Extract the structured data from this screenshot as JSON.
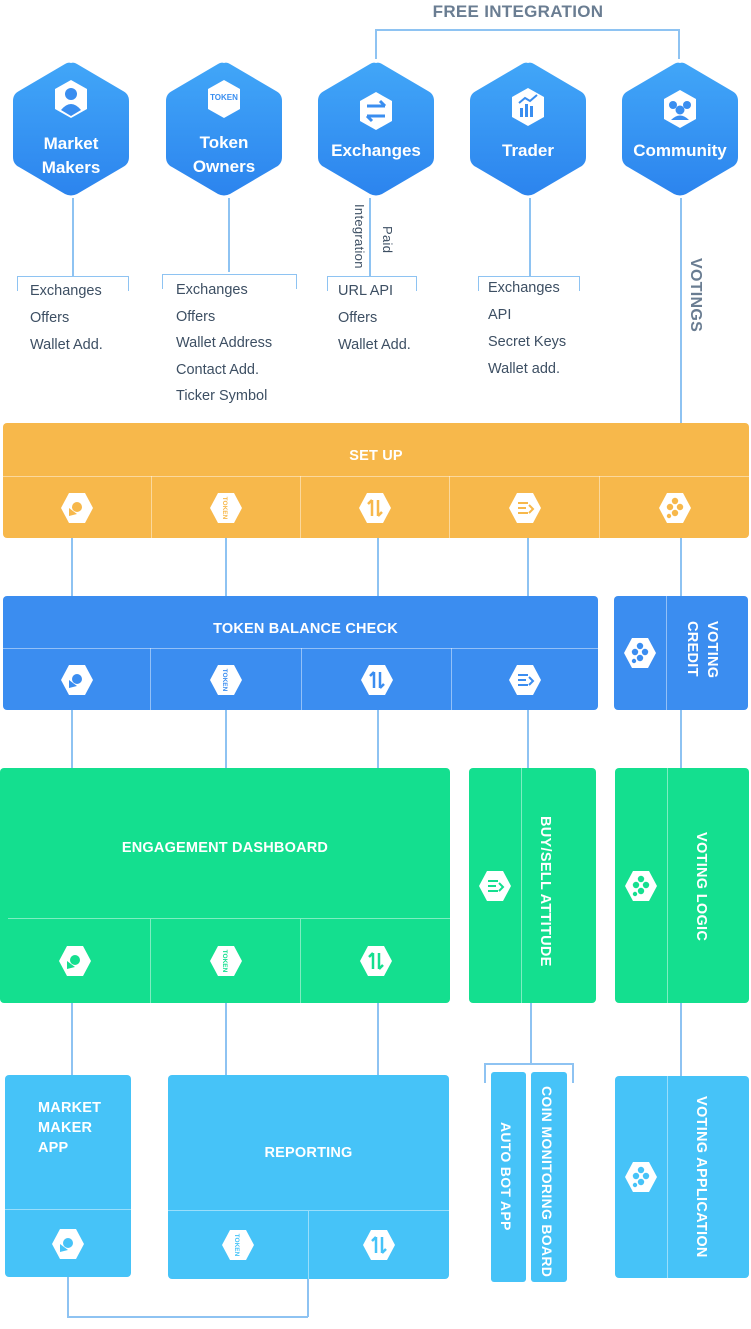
{
  "top_label": "FREE INTEGRATION",
  "voting_label": "VOTINGS",
  "paid_label": "Paid",
  "integration_label": "Integration",
  "colors": {
    "hex_top": "#3fa2f8",
    "hex_bottom": "#2e86f0",
    "setup": "#f7b84b",
    "balance": "#3b8df0",
    "engagement": "#14df8f",
    "app": "#46c3f8",
    "line": "#8ec3f2",
    "text": "#3d4f63"
  },
  "actors": [
    {
      "id": "market-makers",
      "icon": "user-icon",
      "lines": [
        "Market",
        "Makers"
      ],
      "details": [
        "Exchanges",
        "Offers",
        "Wallet Add."
      ]
    },
    {
      "id": "token-owners",
      "icon": "token-icon",
      "icon_text": "TOKEN",
      "lines": [
        "Token",
        "Owners"
      ],
      "details": [
        "Exchanges",
        "Offers",
        "Wallet Address",
        "Contact Add.",
        "Ticker Symbol"
      ]
    },
    {
      "id": "exchanges",
      "icon": "swap-arrows-icon",
      "lines": [
        "Exchanges"
      ],
      "details": [
        "URL API",
        "Offers",
        "Wallet Add."
      ]
    },
    {
      "id": "trader",
      "icon": "chart-icon",
      "lines": [
        "Trader"
      ],
      "details": [
        "Exchanges",
        "API",
        "Secret Keys",
        "Wallet add."
      ]
    },
    {
      "id": "community",
      "icon": "group-icon",
      "lines": [
        "Community"
      ],
      "details": []
    }
  ],
  "setup": {
    "title": "SET UP",
    "icons": [
      "market-maker-icon",
      "token-icon",
      "exchange-icon",
      "trader-icon",
      "community-icon"
    ]
  },
  "balance": {
    "title": "TOKEN BALANCE  CHECK",
    "icons": [
      "market-maker-icon",
      "token-icon",
      "exchange-icon",
      "trader-icon"
    ]
  },
  "voting_credit": {
    "title": "VOTING CREDIT",
    "icon": "community-icon"
  },
  "engagement": {
    "title": "ENGAGEMENT  DASHBOARD",
    "icons": [
      "market-maker-icon",
      "token-icon",
      "exchange-icon"
    ]
  },
  "buysell": {
    "title": "BUY/SELL ATTITUDE",
    "icon": "trader-icon"
  },
  "voting_logic": {
    "title": "VOTING  LOGIC",
    "icon": "community-icon"
  },
  "mm_app": {
    "title": "MARKET MAKER APP",
    "lines": [
      "MARKET",
      "MAKER",
      "APP"
    ],
    "icon": "market-maker-icon"
  },
  "reporting": {
    "title": "REPORTING",
    "icons": [
      "token-icon",
      "exchange-icon"
    ]
  },
  "auto_bot": {
    "title": "AUTO BOT APP"
  },
  "coin_monitoring": {
    "title": "COIN MONITORING BOARD"
  },
  "voting_app": {
    "title": "VOTING  APPLICATION",
    "icon": "community-icon"
  },
  "token_text": "TOKEN"
}
